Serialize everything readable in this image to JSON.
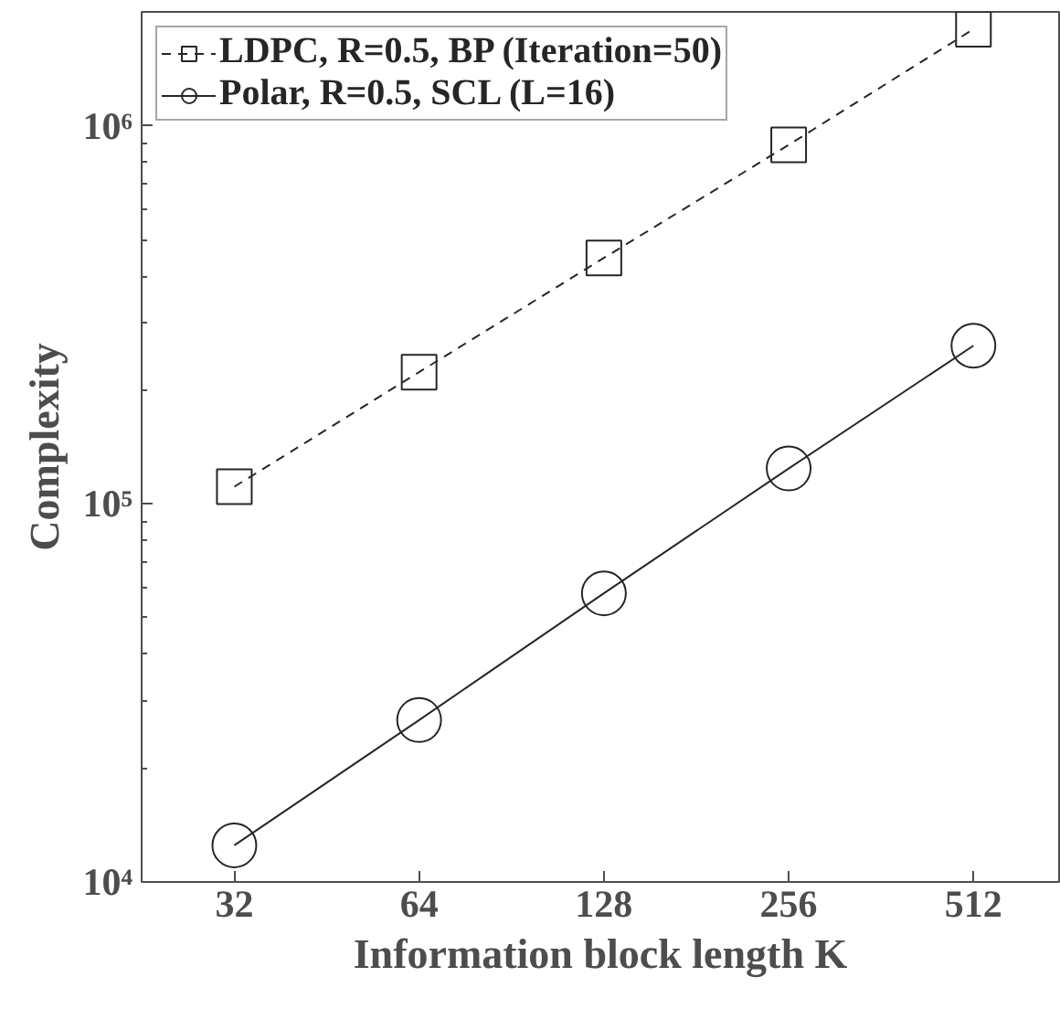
{
  "chart_data": {
    "type": "line",
    "xlabel": "Information block length K",
    "ylabel": "Complexity",
    "log": "xy",
    "x": [
      32,
      64,
      128,
      256,
      512
    ],
    "xlim": [
      22.6,
      706
    ],
    "xticks": [
      32,
      64,
      128,
      256,
      512
    ],
    "ylim": [
      10000,
      2000000
    ],
    "yticks": [
      {
        "value": 10000,
        "label": "10⁴"
      },
      {
        "value": 100000,
        "label": "10⁵"
      },
      {
        "value": 1000000,
        "label": "10⁶"
      }
    ],
    "series": [
      {
        "name": "LDPC, R=0.5, BP (Iteration=50)",
        "color": "#262626",
        "marker": "square",
        "line_style": "dashed",
        "values": [
          111000,
          223000,
          447000,
          890000,
          1800000
        ]
      },
      {
        "name": "Polar, R=0.5, SCL (L=16)",
        "color": "#262626",
        "marker": "circle",
        "line_style": "solid",
        "values": [
          12500,
          26800,
          58000,
          124000,
          262000
        ]
      }
    ],
    "grid": false,
    "legend": "top left"
  }
}
